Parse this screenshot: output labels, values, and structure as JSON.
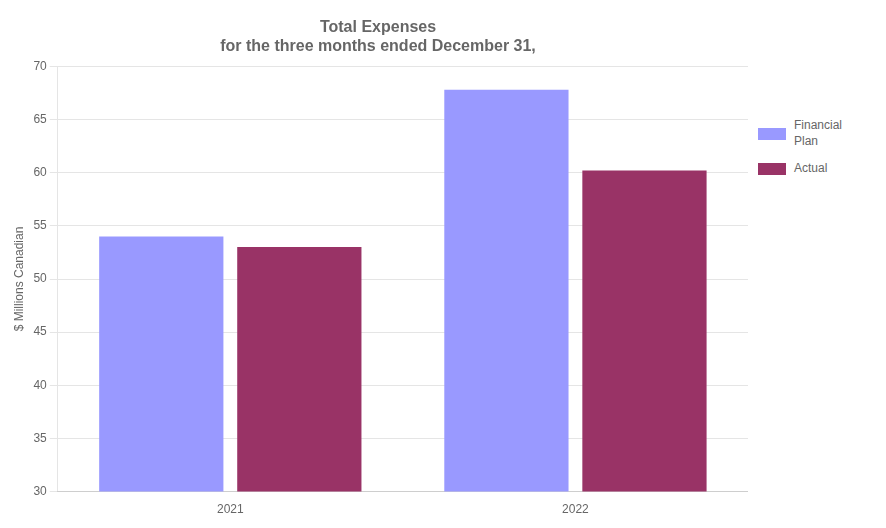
{
  "chart_data": {
    "type": "bar",
    "title": "Total Expenses\nfor the three months ended December 31,",
    "categories": [
      "2021",
      "2022"
    ],
    "series": [
      {
        "name": "Financial\nPlan",
        "color": "#9999FF",
        "values": [
          54.0,
          67.8
        ]
      },
      {
        "name": "Actual",
        "color": "#993366",
        "values": [
          53.0,
          60.2
        ]
      }
    ],
    "y_label": "$ Millions Canadian",
    "ylim": [
      30,
      70
    ],
    "yticks": [
      30,
      35,
      40,
      45,
      50,
      55,
      60,
      65,
      70
    ],
    "grid": true,
    "legend": "right"
  }
}
